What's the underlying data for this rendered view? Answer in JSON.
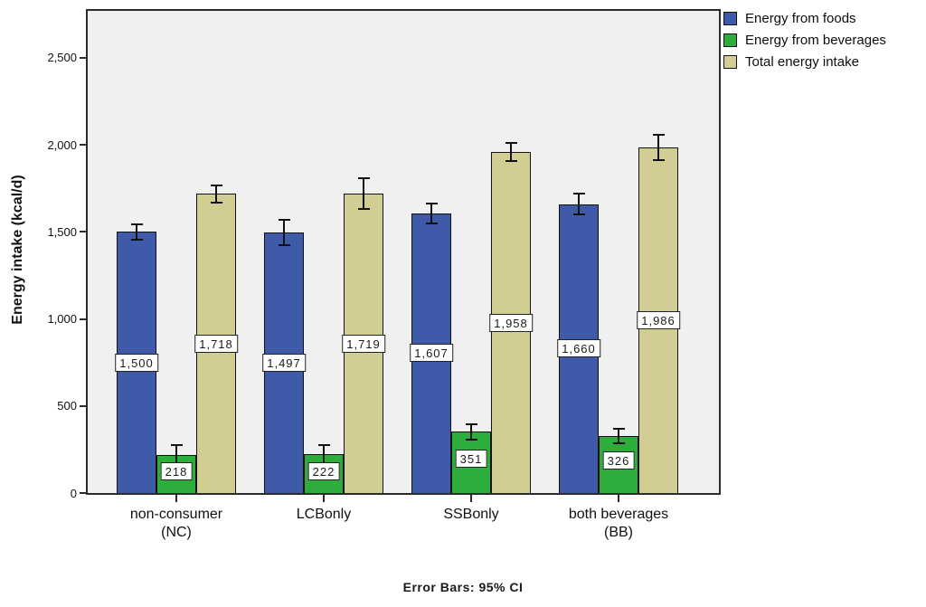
{
  "figure": {
    "caption": "Error Bars: 95% CI",
    "background_color": "#ffffff",
    "plot_background_color": "#f0f0f0"
  },
  "chart_data": {
    "type": "bar",
    "title": "",
    "xlabel": "",
    "ylabel": "Energy intake (kcal/d)",
    "ylim": [
      0,
      2770
    ],
    "yticks": [
      0,
      500,
      1000,
      1500,
      2000,
      2500
    ],
    "ytick_labels": [
      "0",
      "500",
      "1,000",
      "1,500",
      "2,000",
      "2,500"
    ],
    "grid": false,
    "legend_position": "top-right",
    "error_bars": "95% CI",
    "categories": [
      "non-consumer\n(NC)",
      "LCBonly",
      "SSBonly",
      "both beverages\n(BB)"
    ],
    "series": [
      {
        "name": "Energy from foods",
        "color": "#3f5aa9",
        "values": [
          1500,
          1497,
          1607,
          1660
        ],
        "value_labels": [
          "1,500",
          "1,497",
          "1,607",
          "1,660"
        ],
        "ci_halfwidth_est": [
          43,
          73,
          56,
          60
        ],
        "label_center_fraction": 0.5
      },
      {
        "name": "Energy from beverages",
        "color": "#2dae3c",
        "values": [
          218,
          222,
          351,
          326
        ],
        "value_labels": [
          "218",
          "222",
          "351",
          "326"
        ],
        "ci_halfwidth_est": [
          55,
          53,
          44,
          42
        ],
        "label_center_fraction": 0.57
      },
      {
        "name": "Total energy intake",
        "color": "#d2cd92",
        "values": [
          1718,
          1719,
          1958,
          1986
        ],
        "value_labels": [
          "1,718",
          "1,719",
          "1,958",
          "1,986"
        ],
        "ci_halfwidth_est": [
          49,
          88,
          52,
          72
        ],
        "label_center_fraction": 0.5
      }
    ]
  }
}
